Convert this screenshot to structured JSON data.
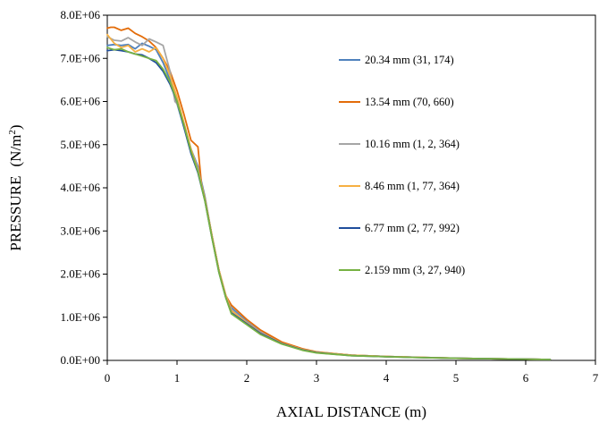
{
  "chart_data": {
    "type": "line",
    "xlabel": "AXIAL DISTANCE (m)",
    "ylabel": "PRESSURE",
    "ylabel_unit": "(N/m",
    "ylabel_unit_sup": "2",
    "ylabel_unit_close": ")",
    "xlim": [
      0,
      7
    ],
    "ylim": [
      0,
      8000000
    ],
    "x_ticks": [
      "0",
      "1",
      "2",
      "3",
      "4",
      "5",
      "6",
      "7"
    ],
    "y_ticks": [
      "0.0E+00",
      "1.0E+06",
      "2.0E+06",
      "3.0E+06",
      "4.0E+06",
      "5.0E+06",
      "6.0E+06",
      "7.0E+06",
      "8.0E+06"
    ],
    "grid": false,
    "legend_position": "right",
    "series": [
      {
        "name": "20.34 mm (31, 174)",
        "color": "#4f81bd",
        "x": [
          0,
          0.1,
          0.2,
          0.3,
          0.4,
          0.5,
          0.6,
          0.7,
          0.8,
          0.9,
          1.0,
          1.1,
          1.2,
          1.3,
          1.4,
          1.5,
          1.6,
          1.7,
          1.78,
          2.0,
          2.2,
          2.5,
          2.8,
          3.0,
          3.5,
          4.0,
          4.5,
          5.0,
          5.5,
          6.0,
          6.35
        ],
        "y": [
          7300000,
          7320000,
          7300000,
          7320000,
          7220000,
          7350000,
          7280000,
          7200000,
          6900000,
          6500000,
          5950000,
          5400000,
          4900000,
          4500000,
          3800000,
          2900000,
          2100000,
          1500000,
          1220000,
          900000,
          650000,
          400000,
          250000,
          190000,
          120000,
          90000,
          70000,
          50000,
          40000,
          30000,
          20000
        ]
      },
      {
        "name": "13.54 mm (70, 660)",
        "color": "#e36c09",
        "x": [
          0,
          0.05,
          0.1,
          0.2,
          0.3,
          0.4,
          0.5,
          0.6,
          0.7,
          0.8,
          0.9,
          1.0,
          1.1,
          1.2,
          1.3,
          1.35,
          1.4,
          1.5,
          1.6,
          1.7,
          1.78,
          2.0,
          2.2,
          2.5,
          2.8,
          3.0,
          3.5,
          4.0,
          4.5,
          5.0,
          5.5,
          6.0,
          6.35
        ],
        "y": [
          7700000,
          7720000,
          7720000,
          7650000,
          7700000,
          7580000,
          7500000,
          7400000,
          7250000,
          7000000,
          6700000,
          6250000,
          5700000,
          5100000,
          4950000,
          4100000,
          3750000,
          2900000,
          2100000,
          1500000,
          1280000,
          950000,
          700000,
          430000,
          270000,
          200000,
          120000,
          90000,
          70000,
          50000,
          40000,
          30000,
          20000
        ]
      },
      {
        "name": "10.16 mm (1, 2, 364)",
        "color": "#a5a5a5",
        "x": [
          0,
          0.1,
          0.2,
          0.3,
          0.4,
          0.5,
          0.6,
          0.7,
          0.8,
          0.9,
          0.97,
          1.0,
          1.1,
          1.2,
          1.3,
          1.4,
          1.5,
          1.6,
          1.7,
          1.78,
          2.0,
          2.2,
          2.5,
          2.8,
          3.0,
          3.5,
          4.0,
          4.5,
          5.0,
          5.5,
          6.0,
          6.35
        ],
        "y": [
          7500000,
          7420000,
          7400000,
          7480000,
          7380000,
          7300000,
          7450000,
          7380000,
          7300000,
          6700000,
          6000000,
          5950000,
          5500000,
          4900000,
          4450000,
          3750000,
          2900000,
          2100000,
          1500000,
          1180000,
          880000,
          640000,
          400000,
          250000,
          190000,
          120000,
          90000,
          70000,
          50000,
          40000,
          30000,
          20000
        ]
      },
      {
        "name": "8.46 mm  (1, 77, 364)",
        "color": "#f6b042",
        "x": [
          0,
          0.1,
          0.2,
          0.3,
          0.4,
          0.5,
          0.6,
          0.7,
          0.8,
          0.9,
          1.0,
          1.1,
          1.2,
          1.3,
          1.4,
          1.5,
          1.6,
          1.7,
          1.78,
          2.0,
          2.2,
          2.5,
          2.8,
          3.0,
          3.5,
          4.0,
          4.5,
          5.0,
          5.5,
          6.0,
          6.35
        ],
        "y": [
          7550000,
          7350000,
          7250000,
          7300000,
          7150000,
          7220000,
          7150000,
          7250000,
          7000000,
          6600000,
          6100000,
          5500000,
          4900000,
          4400000,
          3750000,
          2900000,
          2100000,
          1500000,
          1150000,
          870000,
          630000,
          400000,
          250000,
          190000,
          120000,
          90000,
          70000,
          50000,
          40000,
          30000,
          20000
        ]
      },
      {
        "name": "6.77 mm  (2, 77, 992)",
        "color": "#1f4e9c",
        "x": [
          0,
          0.1,
          0.2,
          0.3,
          0.4,
          0.5,
          0.6,
          0.7,
          0.8,
          0.9,
          1.0,
          1.1,
          1.2,
          1.3,
          1.4,
          1.5,
          1.6,
          1.7,
          1.78,
          2.0,
          2.2,
          2.5,
          2.8,
          3.0,
          3.5,
          4.0,
          4.5,
          5.0,
          5.5,
          6.0,
          6.35
        ],
        "y": [
          7180000,
          7200000,
          7180000,
          7150000,
          7100000,
          7080000,
          7000000,
          6900000,
          6700000,
          6400000,
          6000000,
          5400000,
          4800000,
          4350000,
          3700000,
          2850000,
          2050000,
          1450000,
          1100000,
          850000,
          620000,
          390000,
          240000,
          180000,
          110000,
          85000,
          65000,
          50000,
          40000,
          30000,
          20000
        ]
      },
      {
        "name": "2.159 mm (3, 27, 940)",
        "color": "#77b243",
        "x": [
          0,
          0.1,
          0.2,
          0.3,
          0.4,
          0.5,
          0.6,
          0.7,
          0.8,
          0.9,
          1.0,
          1.1,
          1.2,
          1.3,
          1.4,
          1.5,
          1.6,
          1.7,
          1.78,
          2.0,
          2.2,
          2.5,
          2.8,
          3.0,
          3.5,
          4.0,
          4.5,
          5.0,
          5.5,
          6.0,
          6.35
        ],
        "y": [
          7250000,
          7200000,
          7220000,
          7150000,
          7100000,
          7050000,
          7000000,
          6950000,
          6750000,
          6450000,
          6000000,
          5450000,
          4850000,
          4380000,
          3700000,
          2850000,
          2050000,
          1450000,
          1080000,
          830000,
          600000,
          380000,
          235000,
          175000,
          110000,
          85000,
          65000,
          50000,
          40000,
          30000,
          20000
        ]
      }
    ]
  }
}
